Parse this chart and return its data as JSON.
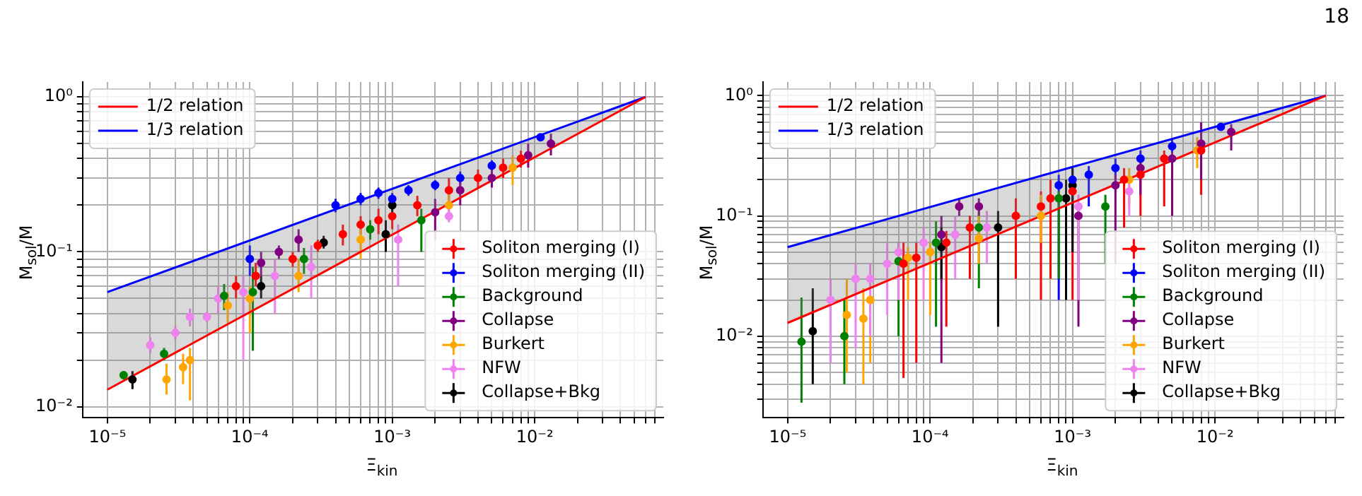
{
  "chart_data": [
    {
      "type": "scatter",
      "xlabel": "Ξ$_{kin}$",
      "ylabel": "M$_{sol}$/M",
      "log": "xy",
      "grid": true,
      "legend": "bottom right",
      "marker": "circle",
      "xlim": [
        6.7e-06,
        0.08
      ],
      "ylim": [
        0.0085,
        1.25
      ],
      "xticks": [
        {
          "value": 1e-05,
          "label": "10⁻⁵"
        },
        {
          "value": 2e-05,
          "label": null
        },
        {
          "value": 3e-05,
          "label": null
        },
        {
          "value": 4e-05,
          "label": null
        },
        {
          "value": 5e-05,
          "label": null
        },
        {
          "value": 6e-05,
          "label": null
        },
        {
          "value": 7e-05,
          "label": null
        },
        {
          "value": 8e-05,
          "label": null
        },
        {
          "value": 9e-05,
          "label": null
        },
        {
          "value": 0.0001,
          "label": "10⁻⁴"
        },
        {
          "value": 0.0002,
          "label": null
        },
        {
          "value": 0.0003,
          "label": null
        },
        {
          "value": 0.0004,
          "label": null
        },
        {
          "value": 0.0005,
          "label": null
        },
        {
          "value": 0.0006,
          "label": null
        },
        {
          "value": 0.0007,
          "label": null
        },
        {
          "value": 0.0008,
          "label": null
        },
        {
          "value": 0.0009,
          "label": null
        },
        {
          "value": 0.001,
          "label": "10⁻³"
        },
        {
          "value": 0.002,
          "label": null
        },
        {
          "value": 0.003,
          "label": null
        },
        {
          "value": 0.004,
          "label": null
        },
        {
          "value": 0.005,
          "label": null
        },
        {
          "value": 0.006,
          "label": null
        },
        {
          "value": 0.007,
          "label": null
        },
        {
          "value": 0.008,
          "label": null
        },
        {
          "value": 0.009,
          "label": null
        },
        {
          "value": 0.01,
          "label": "10⁻²"
        },
        {
          "value": 0.02,
          "label": null
        },
        {
          "value": 0.03,
          "label": null
        },
        {
          "value": 0.04,
          "label": null
        },
        {
          "value": 0.05,
          "label": null
        },
        {
          "value": 0.06,
          "label": null
        },
        {
          "value": 0.07,
          "label": null
        }
      ],
      "yticks": [
        {
          "value": 0.01,
          "label": "10⁻²"
        },
        {
          "value": 0.02,
          "label": null
        },
        {
          "value": 0.03,
          "label": null
        },
        {
          "value": 0.04,
          "label": null
        },
        {
          "value": 0.05,
          "label": null
        },
        {
          "value": 0.06,
          "label": null
        },
        {
          "value": 0.07,
          "label": null
        },
        {
          "value": 0.08,
          "label": null
        },
        {
          "value": 0.09,
          "label": null
        },
        {
          "value": 0.1,
          "label": "10⁻¹"
        },
        {
          "value": 0.2,
          "label": null
        },
        {
          "value": 0.3,
          "label": null
        },
        {
          "value": 0.4,
          "label": null
        },
        {
          "value": 0.5,
          "label": null
        },
        {
          "value": 0.6,
          "label": null
        },
        {
          "value": 0.7,
          "label": null
        },
        {
          "value": 0.8,
          "label": null
        },
        {
          "value": 0.9,
          "label": null
        },
        {
          "value": 1,
          "label": "10⁰"
        }
      ],
      "series": [
        {
          "name": "1/2 relation",
          "type": "line",
          "marker": "none",
          "color": "#ff0000",
          "x": [
            1e-05,
            0.06
          ],
          "values": [
            0.0129,
            1.0
          ],
          "lower": [
            0.0129,
            1.0
          ],
          "upper": [
            0.055,
            1.0
          ]
        },
        {
          "name": "1/3 relation",
          "type": "line",
          "marker": "none",
          "color": "#0000ff",
          "x": [
            1e-05,
            0.06
          ],
          "values": [
            0.055,
            1.0
          ]
        },
        {
          "name": "Soliton merging (I)",
          "color": "#ff0000",
          "x": [
            8e-05,
            0.00011,
            0.0002,
            0.0003,
            0.00045,
            0.0006,
            0.0008,
            0.001,
            0.0015,
            0.0025,
            0.004,
            0.006,
            0.008
          ],
          "values": [
            0.06,
            0.07,
            0.09,
            0.11,
            0.13,
            0.15,
            0.16,
            0.17,
            0.2,
            0.25,
            0.3,
            0.35,
            0.4
          ],
          "errors": [
            [
              0.05,
              0.07
            ],
            [
              0.06,
              0.085
            ],
            [
              0.08,
              0.1
            ],
            [
              0.1,
              0.12
            ],
            [
              0.11,
              0.15
            ],
            [
              0.13,
              0.17
            ],
            [
              0.13,
              0.19
            ],
            [
              0.14,
              0.2
            ],
            [
              0.17,
              0.23
            ],
            [
              0.21,
              0.3
            ],
            [
              0.26,
              0.34
            ],
            [
              0.3,
              0.4
            ],
            [
              0.35,
              0.45
            ]
          ]
        },
        {
          "name": "Soliton merging (II)",
          "color": "#0000ff",
          "x": [
            0.0001,
            0.0004,
            0.0006,
            0.0008,
            0.001,
            0.0013,
            0.002,
            0.003,
            0.005,
            0.011
          ],
          "values": [
            0.09,
            0.2,
            0.22,
            0.24,
            0.22,
            0.25,
            0.27,
            0.3,
            0.36,
            0.55
          ],
          "errors": [
            [
              0.07,
              0.11
            ],
            [
              0.18,
              0.22
            ],
            [
              0.2,
              0.24
            ],
            [
              0.22,
              0.26
            ],
            [
              0.2,
              0.24
            ],
            [
              0.23,
              0.27
            ],
            [
              0.25,
              0.29
            ],
            [
              0.27,
              0.33
            ],
            [
              0.33,
              0.39
            ],
            [
              0.52,
              0.58
            ]
          ]
        },
        {
          "name": "Background",
          "color": "#008000",
          "x": [
            1.3e-05,
            2.5e-05,
            6.6e-05,
            0.000105,
            0.00024,
            0.0007,
            0.0016
          ],
          "values": [
            0.016,
            0.022,
            0.052,
            0.055,
            0.09,
            0.14,
            0.16
          ],
          "errors": [
            [
              0.015,
              0.017
            ],
            [
              0.02,
              0.024
            ],
            [
              0.042,
              0.062
            ],
            [
              0.023,
              0.08
            ],
            [
              0.072,
              0.106
            ],
            [
              0.12,
              0.16
            ],
            [
              0.1,
              0.19
            ]
          ]
        },
        {
          "name": "Collapse",
          "color": "#800080",
          "x": [
            0.00012,
            0.00016,
            0.00022,
            0.002,
            0.003,
            0.005,
            0.009,
            0.013
          ],
          "values": [
            0.085,
            0.1,
            0.12,
            0.18,
            0.25,
            0.3,
            0.42,
            0.5
          ],
          "errors": [
            [
              0.07,
              0.1
            ],
            [
              0.09,
              0.11
            ],
            [
              0.1,
              0.14
            ],
            [
              0.12,
              0.22
            ],
            [
              0.2,
              0.3
            ],
            [
              0.26,
              0.34
            ],
            [
              0.35,
              0.5
            ],
            [
              0.42,
              0.58
            ]
          ]
        },
        {
          "name": "Burkert",
          "color": "#ffa500",
          "x": [
            2.6e-05,
            3.4e-05,
            3.8e-05,
            7e-05,
            0.0001,
            0.00022,
            0.0006,
            0.0025,
            0.007
          ],
          "values": [
            0.015,
            0.018,
            0.02,
            0.045,
            0.05,
            0.07,
            0.12,
            0.2,
            0.35
          ],
          "errors": [
            [
              0.012,
              0.019
            ],
            [
              0.014,
              0.022
            ],
            [
              0.011,
              0.024
            ],
            [
              0.035,
              0.055
            ],
            [
              0.03,
              0.06
            ],
            [
              0.055,
              0.09
            ],
            [
              0.09,
              0.14
            ],
            [
              0.16,
              0.24
            ],
            [
              0.27,
              0.42
            ]
          ]
        },
        {
          "name": "NFW",
          "color": "#ee82ee",
          "x": [
            2e-05,
            3e-05,
            3.8e-05,
            5e-05,
            6e-05,
            9e-05,
            0.00015,
            0.00027,
            0.0011,
            0.0025
          ],
          "values": [
            0.025,
            0.03,
            0.038,
            0.038,
            0.05,
            0.055,
            0.07,
            0.08,
            0.12,
            0.17
          ],
          "errors": [
            [
              0.022,
              0.028
            ],
            [
              0.027,
              0.033
            ],
            [
              0.033,
              0.043
            ],
            [
              0.035,
              0.041
            ],
            [
              0.04,
              0.06
            ],
            [
              0.02,
              0.07
            ],
            [
              0.04,
              0.09
            ],
            [
              0.05,
              0.11
            ],
            [
              0.06,
              0.15
            ],
            [
              0.155,
              0.2
            ]
          ]
        },
        {
          "name": "Collapse+Bkg",
          "color": "#000000",
          "x": [
            1.5e-05,
            0.00012,
            0.00033,
            0.0009,
            0.001
          ],
          "values": [
            0.015,
            0.06,
            0.115,
            0.13,
            0.2
          ],
          "errors": [
            [
              0.013,
              0.017
            ],
            [
              0.05,
              0.07
            ],
            [
              0.105,
              0.127
            ],
            [
              0.1,
              0.16
            ],
            [
              0.18,
              0.22
            ]
          ]
        }
      ]
    },
    {
      "type": "scatter",
      "xlabel": "Ξ$_{kin}$",
      "ylabel": "M$_{sol}$/M",
      "log": "xy",
      "grid": true,
      "legend": "bottom right",
      "marker": "circle",
      "annotations": [
        "18"
      ],
      "xlim": [
        6.7e-06,
        0.08
      ],
      "ylim": [
        0.0021,
        1.3
      ],
      "xticks": [
        {
          "value": 1e-05,
          "label": "10⁻⁵"
        },
        {
          "value": 2e-05,
          "label": null
        },
        {
          "value": 3e-05,
          "label": null
        },
        {
          "value": 4e-05,
          "label": null
        },
        {
          "value": 5e-05,
          "label": null
        },
        {
          "value": 6e-05,
          "label": null
        },
        {
          "value": 7e-05,
          "label": null
        },
        {
          "value": 8e-05,
          "label": null
        },
        {
          "value": 9e-05,
          "label": null
        },
        {
          "value": 0.0001,
          "label": "10⁻⁴"
        },
        {
          "value": 0.0002,
          "label": null
        },
        {
          "value": 0.0003,
          "label": null
        },
        {
          "value": 0.0004,
          "label": null
        },
        {
          "value": 0.0005,
          "label": null
        },
        {
          "value": 0.0006,
          "label": null
        },
        {
          "value": 0.0007,
          "label": null
        },
        {
          "value": 0.0008,
          "label": null
        },
        {
          "value": 0.0009,
          "label": null
        },
        {
          "value": 0.001,
          "label": "10⁻³"
        },
        {
          "value": 0.002,
          "label": null
        },
        {
          "value": 0.003,
          "label": null
        },
        {
          "value": 0.004,
          "label": null
        },
        {
          "value": 0.005,
          "label": null
        },
        {
          "value": 0.006,
          "label": null
        },
        {
          "value": 0.007,
          "label": null
        },
        {
          "value": 0.008,
          "label": null
        },
        {
          "value": 0.009,
          "label": null
        },
        {
          "value": 0.01,
          "label": "10⁻²"
        },
        {
          "value": 0.02,
          "label": null
        },
        {
          "value": 0.03,
          "label": null
        },
        {
          "value": 0.04,
          "label": null
        },
        {
          "value": 0.05,
          "label": null
        },
        {
          "value": 0.06,
          "label": null
        },
        {
          "value": 0.07,
          "label": null
        }
      ],
      "yticks": [
        {
          "value": 0.003,
          "label": null
        },
        {
          "value": 0.004,
          "label": null
        },
        {
          "value": 0.005,
          "label": null
        },
        {
          "value": 0.006,
          "label": null
        },
        {
          "value": 0.007,
          "label": null
        },
        {
          "value": 0.008,
          "label": null
        },
        {
          "value": 0.009,
          "label": null
        },
        {
          "value": 0.01,
          "label": "10⁻²"
        },
        {
          "value": 0.02,
          "label": null
        },
        {
          "value": 0.03,
          "label": null
        },
        {
          "value": 0.04,
          "label": null
        },
        {
          "value": 0.05,
          "label": null
        },
        {
          "value": 0.06,
          "label": null
        },
        {
          "value": 0.07,
          "label": null
        },
        {
          "value": 0.08,
          "label": null
        },
        {
          "value": 0.09,
          "label": null
        },
        {
          "value": 0.1,
          "label": "10⁻¹"
        },
        {
          "value": 0.2,
          "label": null
        },
        {
          "value": 0.3,
          "label": null
        },
        {
          "value": 0.4,
          "label": null
        },
        {
          "value": 0.5,
          "label": null
        },
        {
          "value": 0.6,
          "label": null
        },
        {
          "value": 0.7,
          "label": null
        },
        {
          "value": 0.8,
          "label": null
        },
        {
          "value": 0.9,
          "label": null
        },
        {
          "value": 1,
          "label": "10⁰"
        }
      ],
      "series": [
        {
          "name": "1/2 relation",
          "type": "line",
          "marker": "none",
          "color": "#ff0000",
          "x": [
            1e-05,
            0.06
          ],
          "values": [
            0.0129,
            1.0
          ],
          "lower": [
            0.0129,
            1.0
          ],
          "upper": [
            0.055,
            1.0
          ]
        },
        {
          "name": "1/3 relation",
          "type": "line",
          "marker": "none",
          "color": "#0000ff",
          "x": [
            1e-05,
            0.06
          ],
          "values": [
            0.055,
            1.0
          ]
        },
        {
          "name": "Soliton merging (I)",
          "color": "#ff0000",
          "x": [
            6.5e-05,
            8e-05,
            0.00013,
            0.00019,
            0.0004,
            0.0006,
            0.0007,
            0.001,
            0.0023,
            0.003,
            0.0044,
            0.008
          ],
          "values": [
            0.04,
            0.045,
            0.06,
            0.08,
            0.1,
            0.12,
            0.14,
            0.16,
            0.2,
            0.22,
            0.3,
            0.35
          ],
          "errors": [
            [
              0.0045,
              0.06
            ],
            [
              0.006,
              0.06
            ],
            [
              0.012,
              0.075
            ],
            [
              0.03,
              0.1
            ],
            [
              0.03,
              0.14
            ],
            [
              0.02,
              0.16
            ],
            [
              0.03,
              0.2
            ],
            [
              0.02,
              0.2
            ],
            [
              0.08,
              0.25
            ],
            [
              0.1,
              0.3
            ],
            [
              0.12,
              0.35
            ],
            [
              0.15,
              0.4
            ]
          ]
        },
        {
          "name": "Soliton merging (II)",
          "color": "#0000ff",
          "x": [
            0.0008,
            0.001,
            0.0013,
            0.002,
            0.003,
            0.005,
            0.011
          ],
          "values": [
            0.18,
            0.2,
            0.22,
            0.25,
            0.3,
            0.38,
            0.55
          ],
          "errors": [
            [
              0.02,
              0.22
            ],
            [
              0.07,
              0.25
            ],
            [
              0.12,
              0.26
            ],
            [
              0.2,
              0.3
            ],
            [
              0.25,
              0.35
            ],
            [
              0.33,
              0.43
            ],
            [
              0.52,
              0.58
            ]
          ]
        },
        {
          "name": "Background",
          "color": "#008000",
          "x": [
            1.25e-05,
            2.5e-05,
            6e-05,
            0.00011,
            0.00022,
            0.0008,
            0.0017
          ],
          "values": [
            0.009,
            0.01,
            0.042,
            0.06,
            0.08,
            0.14,
            0.12
          ],
          "errors": [
            [
              0.0028,
              0.021
            ],
            [
              0.004,
              0.02
            ],
            [
              0.01,
              0.06
            ],
            [
              0.012,
              0.09
            ],
            [
              0.025,
              0.11
            ],
            [
              0.03,
              0.16
            ],
            [
              0.04,
              0.15
            ]
          ]
        },
        {
          "name": "Collapse",
          "color": "#800080",
          "x": [
            0.00012,
            0.00016,
            0.00022,
            0.0011,
            0.002,
            0.003,
            0.005,
            0.008,
            0.013
          ],
          "values": [
            0.07,
            0.12,
            0.12,
            0.1,
            0.18,
            0.25,
            0.3,
            0.4,
            0.5
          ],
          "errors": [
            [
              0.006,
              0.1
            ],
            [
              0.1,
              0.14
            ],
            [
              0.1,
              0.14
            ],
            [
              0.012,
              0.12
            ],
            [
              0.04,
              0.22
            ],
            [
              0.15,
              0.3
            ],
            [
              0.1,
              0.34
            ],
            [
              0.2,
              0.6
            ],
            [
              0.35,
              0.58
            ]
          ]
        },
        {
          "name": "Burkert",
          "color": "#ffa500",
          "x": [
            2.6e-05,
            3.4e-05,
            3.8e-05,
            7e-05,
            0.0001,
            0.00022,
            0.0006,
            0.0025,
            0.0075
          ],
          "values": [
            0.015,
            0.014,
            0.02,
            0.045,
            0.05,
            0.065,
            0.1,
            0.2,
            0.35
          ],
          "errors": [
            [
              0.005,
              0.03
            ],
            [
              0.004,
              0.025
            ],
            [
              0.006,
              0.03
            ],
            [
              0.02,
              0.055
            ],
            [
              0.015,
              0.06
            ],
            [
              0.04,
              0.1
            ],
            [
              0.06,
              0.15
            ],
            [
              0.12,
              0.25
            ],
            [
              0.25,
              0.45
            ]
          ]
        },
        {
          "name": "NFW",
          "color": "#ee82ee",
          "x": [
            2e-05,
            3e-05,
            3.8e-05,
            5e-05,
            6e-05,
            9e-05,
            0.00015,
            0.00025,
            0.0011,
            0.0025
          ],
          "values": [
            0.02,
            0.03,
            0.03,
            0.04,
            0.05,
            0.06,
            0.07,
            0.08,
            0.12,
            0.16
          ],
          "errors": [
            [
              0.006,
              0.03
            ],
            [
              0.008,
              0.04
            ],
            [
              0.01,
              0.04
            ],
            [
              0.015,
              0.06
            ],
            [
              0.02,
              0.06
            ],
            [
              0.02,
              0.08
            ],
            [
              0.03,
              0.1
            ],
            [
              0.04,
              0.11
            ],
            [
              0.02,
              0.15
            ],
            [
              0.1,
              0.2
            ]
          ]
        },
        {
          "name": "Collapse+Bkg",
          "color": "#000000",
          "x": [
            1.5e-05,
            0.00012,
            0.0003,
            0.0009,
            0.001
          ],
          "values": [
            0.011,
            0.055,
            0.08,
            0.14,
            0.18
          ],
          "errors": [
            [
              0.004,
              0.025
            ],
            [
              0.03,
              0.08
            ],
            [
              0.012,
              0.11
            ],
            [
              0.02,
              0.2
            ],
            [
              0.05,
              0.25
            ]
          ]
        }
      ]
    }
  ]
}
